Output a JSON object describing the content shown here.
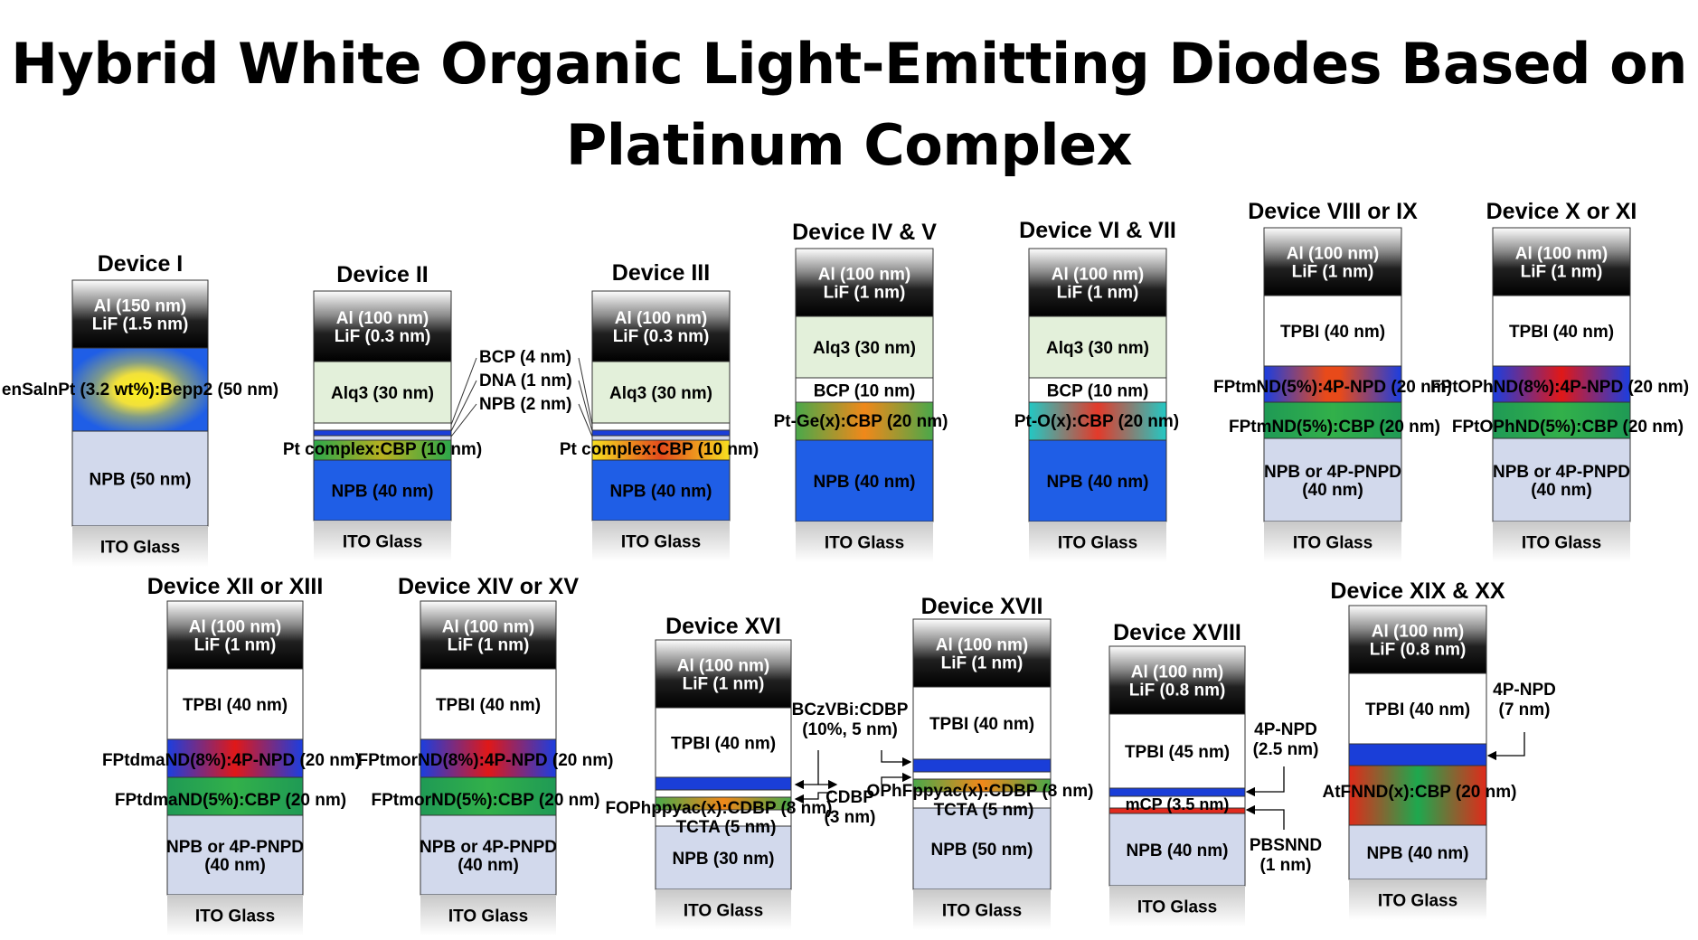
{
  "title": "Hybrid White Organic Light-Emitting Diodes Based on Platinum Complex",
  "devices": [
    {
      "id": "dev1",
      "name": "Device I",
      "layers": [
        {
          "id": "top",
          "label": "Al (150 nm) LiF (1.5 nm)"
        },
        {
          "id": "eml",
          "label": "enSalnPt (3.2 wt%):Bepp2 (50 nm)"
        },
        {
          "id": "npb",
          "label": "NPB (50 nm)"
        },
        {
          "id": "ito",
          "label": "ITO Glass"
        }
      ],
      "annotations": []
    },
    {
      "id": "dev2",
      "name": "Device II",
      "layers": [
        {
          "id": "top",
          "label": "Al (100 nm) LiF (0.3 nm)"
        },
        {
          "id": "alq",
          "label": "Alq3 (30 nm)"
        },
        {
          "id": "pt",
          "label": "Pt complex:CBP (10 nm)"
        },
        {
          "id": "npb",
          "label": "NPB (40 nm)"
        },
        {
          "id": "ito",
          "label": "ITO Glass"
        }
      ],
      "annotations": [
        "BCP (4 nm)",
        "DNA (1 nm)",
        "NPB (2 nm)"
      ]
    },
    {
      "id": "dev3",
      "name": "Device III",
      "layers": [
        {
          "id": "top",
          "label": "Al (100 nm) LiF (0.3 nm)"
        },
        {
          "id": "alq",
          "label": "Alq3 (30 nm)"
        },
        {
          "id": "pt",
          "label": "Pt complex:CBP (10 nm)"
        },
        {
          "id": "npb",
          "label": "NPB (40 nm)"
        },
        {
          "id": "ito",
          "label": "ITO Glass"
        }
      ],
      "annotations": []
    },
    {
      "id": "dev4",
      "name": "Device IV & V",
      "layers": [
        {
          "id": "top",
          "label": "Al (100 nm) LiF (1 nm)"
        },
        {
          "id": "alq",
          "label": "Alq3 (30 nm)"
        },
        {
          "id": "bcp",
          "label": "BCP (10 nm)"
        },
        {
          "id": "eml",
          "label": "Pt-Ge(x):CBP (20 nm)"
        },
        {
          "id": "npb",
          "label": "NPB (40 nm)"
        },
        {
          "id": "ito",
          "label": "ITO Glass"
        }
      ],
      "annotations": []
    },
    {
      "id": "dev6",
      "name": "Device VI & VII",
      "layers": [
        {
          "id": "top",
          "label": "Al (100 nm) LiF (1 nm)"
        },
        {
          "id": "alq",
          "label": "Alq3 (30 nm)"
        },
        {
          "id": "bcp",
          "label": "BCP (10 nm)"
        },
        {
          "id": "eml",
          "label": "Pt-O(x):CBP (20 nm)"
        },
        {
          "id": "npb",
          "label": "NPB (40 nm)"
        },
        {
          "id": "ito",
          "label": "ITO Glass"
        }
      ],
      "annotations": []
    },
    {
      "id": "dev8",
      "name": "Device VIII or IX",
      "layers": [
        {
          "id": "top",
          "label": "Al (100 nm) LiF (1 nm)"
        },
        {
          "id": "tpbi",
          "label": "TPBI (40 nm)"
        },
        {
          "id": "eml1",
          "label": "FPtmND(5%):4P-NPD (20 nm)"
        },
        {
          "id": "eml2",
          "label": "FPtmND(5%):CBP (20 nm)"
        },
        {
          "id": "npb",
          "label": "NPB or 4P-PNPD (40 nm)"
        },
        {
          "id": "ito",
          "label": "ITO Glass"
        }
      ],
      "annotations": []
    },
    {
      "id": "dev10",
      "name": "Device X or XI",
      "layers": [
        {
          "id": "top",
          "label": "Al (100 nm) LiF (1 nm)"
        },
        {
          "id": "tpbi",
          "label": "TPBI (40 nm)"
        },
        {
          "id": "eml1",
          "label": "FPtOPhND(8%):4P-NPD (20 nm)"
        },
        {
          "id": "eml2",
          "label": "FPtOPhND(5%):CBP (20 nm)"
        },
        {
          "id": "npb",
          "label": "NPB or 4P-PNPD (40 nm)"
        },
        {
          "id": "ito",
          "label": "ITO Glass"
        }
      ],
      "annotations": []
    },
    {
      "id": "dev12",
      "name": "Device XII or XIII",
      "layers": [
        {
          "id": "top",
          "label": "Al (100 nm) LiF (1 nm)"
        },
        {
          "id": "tpbi",
          "label": "TPBI (40 nm)"
        },
        {
          "id": "eml1",
          "label": "FPtdmaND(8%):4P-NPD (20 nm)"
        },
        {
          "id": "eml2",
          "label": "FPtdmaND(5%):CBP (20 nm)"
        },
        {
          "id": "npb",
          "label": "NPB or 4P-PNPD (40 nm)"
        },
        {
          "id": "ito",
          "label": "ITO Glass"
        }
      ],
      "annotations": []
    },
    {
      "id": "dev14",
      "name": "Device XIV or XV",
      "layers": [
        {
          "id": "top",
          "label": "Al (100 nm) LiF (1 nm)"
        },
        {
          "id": "tpbi",
          "label": "TPBI (40 nm)"
        },
        {
          "id": "eml1",
          "label": "FPtmorND(8%):4P-NPD (20 nm)"
        },
        {
          "id": "eml2",
          "label": "FPtmorND(5%):CBP (20 nm)"
        },
        {
          "id": "npb",
          "label": "NPB or 4P-PNPD (40 nm)"
        },
        {
          "id": "ito",
          "label": "ITO Glass"
        }
      ],
      "annotations": []
    },
    {
      "id": "dev16",
      "name": "Device XVI",
      "layers": [
        {
          "id": "top",
          "label": "Al (100 nm) LiF (1 nm)"
        },
        {
          "id": "tpbi",
          "label": "TPBI (40 nm)"
        },
        {
          "id": "eml",
          "label": "FOPhppyac(x):CDBP (8 nm)"
        },
        {
          "id": "tcta",
          "label": "TCTA (5 nm)"
        },
        {
          "id": "npb",
          "label": "NPB (30 nm)"
        },
        {
          "id": "ito",
          "label": "ITO Glass"
        }
      ],
      "annotations": [
        "BCzVBi:CDBP (10%, 5 nm)",
        "CDBP (3 nm)"
      ]
    },
    {
      "id": "dev17",
      "name": "Device XVII",
      "layers": [
        {
          "id": "top",
          "label": "Al (100 nm) LiF (1 nm)"
        },
        {
          "id": "tpbi",
          "label": "TPBI (40 nm)"
        },
        {
          "id": "eml",
          "label": "OPhFppyac(x):CDBP (8 nm)"
        },
        {
          "id": "tcta",
          "label": "TCTA (5 nm)"
        },
        {
          "id": "npb",
          "label": "NPB (50 nm)"
        },
        {
          "id": "ito",
          "label": "ITO Glass"
        }
      ],
      "annotations": []
    },
    {
      "id": "dev18",
      "name": "Device XVIII",
      "layers": [
        {
          "id": "top",
          "label": "Al (100 nm) LiF (0.8 nm)"
        },
        {
          "id": "tpbi",
          "label": "TPBI (45 nm)"
        },
        {
          "id": "mcp",
          "label": "mCP (3.5 nm)"
        },
        {
          "id": "npb",
          "label": "NPB (40 nm)"
        },
        {
          "id": "ito",
          "label": "ITO Glass"
        }
      ],
      "annotations": [
        "4P-NPD (2.5 nm)",
        "PBSNND (1 nm)"
      ]
    },
    {
      "id": "dev19",
      "name": "Device XIX & XX",
      "layers": [
        {
          "id": "top",
          "label": "Al (100 nm) LiF (0.8 nm)"
        },
        {
          "id": "tpbi",
          "label": "TPBI (40 nm)"
        },
        {
          "id": "eml",
          "label": "AtFNND(x):CBP (20 nm)"
        },
        {
          "id": "npb",
          "label": "NPB (40 nm)"
        },
        {
          "id": "ito",
          "label": "ITO Glass"
        }
      ],
      "annotations": [
        "4P-NPD (7 nm)"
      ]
    }
  ],
  "colors": {
    "alq": "#e3f0da",
    "npb_light": "#d2d9ec",
    "npb_blue": "#1f5ee6",
    "tpbi": "#ffffff",
    "red": "#e12a1e",
    "green": "#16a04a",
    "blue": "#1a4cd8",
    "yellow": "#f6e21c",
    "orange": "#f08a18",
    "cyan": "#21c7d6",
    "ito": "#d3d3d3"
  }
}
